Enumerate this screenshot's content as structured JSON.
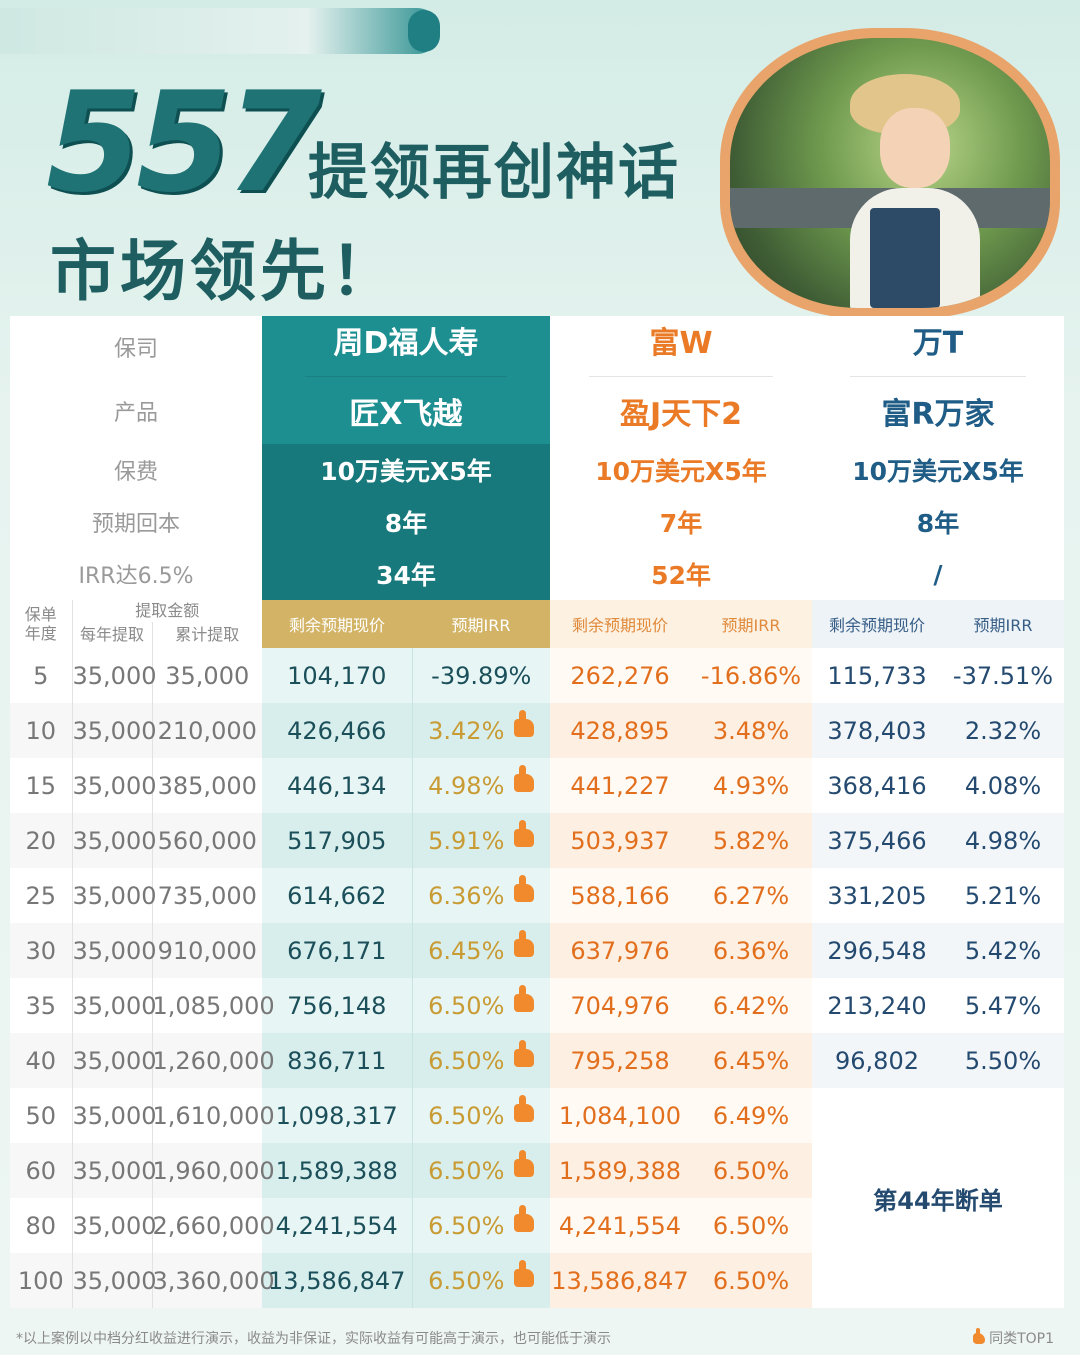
{
  "header": {
    "title_number": "557",
    "title_text": "提领再创神话",
    "subtitle": "市场领先！"
  },
  "labels": {
    "insurer": "保司",
    "product": "产品",
    "premium": "保费",
    "payback": "预期回本",
    "irr": "IRR达6.5%",
    "policy_year": "保单年度",
    "withdraw_amount": "提取金额",
    "annual_withdraw": "每年提取",
    "cumulative_withdraw": "累计提取",
    "surrender_value": "剩余预期现价",
    "expected_irr": "预期IRR"
  },
  "companies": [
    {
      "insurer": "周D福人寿",
      "product": "匠X飞越",
      "premium": "10万美元X5年",
      "payback": "8年",
      "irr_year": "34年"
    },
    {
      "insurer": "富W",
      "product": "盈J天下2",
      "premium": "10万美元X5年",
      "payback": "7年",
      "irr_year": "52年"
    },
    {
      "insurer": "万T",
      "product": "富R万家",
      "premium": "10万美元X5年",
      "payback": "8年",
      "irr_year": "/"
    }
  ],
  "rows": [
    {
      "year": "5",
      "annual": "35,000",
      "cumulative": "35,000",
      "a_val": "104,170",
      "a_irr": "-39.89%",
      "a_thumb": false,
      "b_val": "262,276",
      "b_irr": "-16.86%",
      "c_val": "115,733",
      "c_irr": "-37.51%"
    },
    {
      "year": "10",
      "annual": "35,000",
      "cumulative": "210,000",
      "a_val": "426,466",
      "a_irr": "3.42%",
      "a_thumb": true,
      "b_val": "428,895",
      "b_irr": "3.48%",
      "c_val": "378,403",
      "c_irr": "2.32%"
    },
    {
      "year": "15",
      "annual": "35,000",
      "cumulative": "385,000",
      "a_val": "446,134",
      "a_irr": "4.98%",
      "a_thumb": true,
      "b_val": "441,227",
      "b_irr": "4.93%",
      "c_val": "368,416",
      "c_irr": "4.08%"
    },
    {
      "year": "20",
      "annual": "35,000",
      "cumulative": "560,000",
      "a_val": "517,905",
      "a_irr": "5.91%",
      "a_thumb": true,
      "b_val": "503,937",
      "b_irr": "5.82%",
      "c_val": "375,466",
      "c_irr": "4.98%"
    },
    {
      "year": "25",
      "annual": "35,000",
      "cumulative": "735,000",
      "a_val": "614,662",
      "a_irr": "6.36%",
      "a_thumb": true,
      "b_val": "588,166",
      "b_irr": "6.27%",
      "c_val": "331,205",
      "c_irr": "5.21%"
    },
    {
      "year": "30",
      "annual": "35,000",
      "cumulative": "910,000",
      "a_val": "676,171",
      "a_irr": "6.45%",
      "a_thumb": true,
      "b_val": "637,976",
      "b_irr": "6.36%",
      "c_val": "296,548",
      "c_irr": "5.42%"
    },
    {
      "year": "35",
      "annual": "35,000",
      "cumulative": "1,085,000",
      "a_val": "756,148",
      "a_irr": "6.50%",
      "a_thumb": true,
      "b_val": "704,976",
      "b_irr": "6.42%",
      "c_val": "213,240",
      "c_irr": "5.47%"
    },
    {
      "year": "40",
      "annual": "35,000",
      "cumulative": "1,260,000",
      "a_val": "836,711",
      "a_irr": "6.50%",
      "a_thumb": true,
      "b_val": "795,258",
      "b_irr": "6.45%",
      "c_val": "96,802",
      "c_irr": "5.50%"
    },
    {
      "year": "50",
      "annual": "35,000",
      "cumulative": "1,610,000",
      "a_val": "1,098,317",
      "a_irr": "6.50%",
      "a_thumb": true,
      "b_val": "1,084,100",
      "b_irr": "6.49%",
      "c_val": "",
      "c_irr": ""
    },
    {
      "year": "60",
      "annual": "35,000",
      "cumulative": "1,960,000",
      "a_val": "1,589,388",
      "a_irr": "6.50%",
      "a_thumb": true,
      "b_val": "1,589,388",
      "b_irr": "6.50%",
      "c_val": "",
      "c_irr": ""
    },
    {
      "year": "80",
      "annual": "35,000",
      "cumulative": "2,660,000",
      "a_val": "4,241,554",
      "a_irr": "6.50%",
      "a_thumb": true,
      "b_val": "4,241,554",
      "b_irr": "6.50%",
      "c_val": "",
      "c_irr": ""
    },
    {
      "year": "100",
      "annual": "35,000",
      "cumulative": "3,360,000",
      "a_val": "13,586,847",
      "a_irr": "6.50%",
      "a_thumb": true,
      "b_val": "13,586,847",
      "b_irr": "6.50%",
      "c_val": "",
      "c_irr": ""
    }
  ],
  "lapse_note": "第44年断单",
  "footer": {
    "disclaimer": "*以上案例以中档分红收益进行演示，收益为非保证，实际收益有可能高于演示，也可能低于演示",
    "badge": "同类TOP1",
    "thumb_icon": "thumbs-up-icon"
  },
  "colors": {
    "teal": "#1e8f91",
    "gold": "#d3b466",
    "orange": "#ea7a25",
    "blue": "#1f5c86"
  }
}
